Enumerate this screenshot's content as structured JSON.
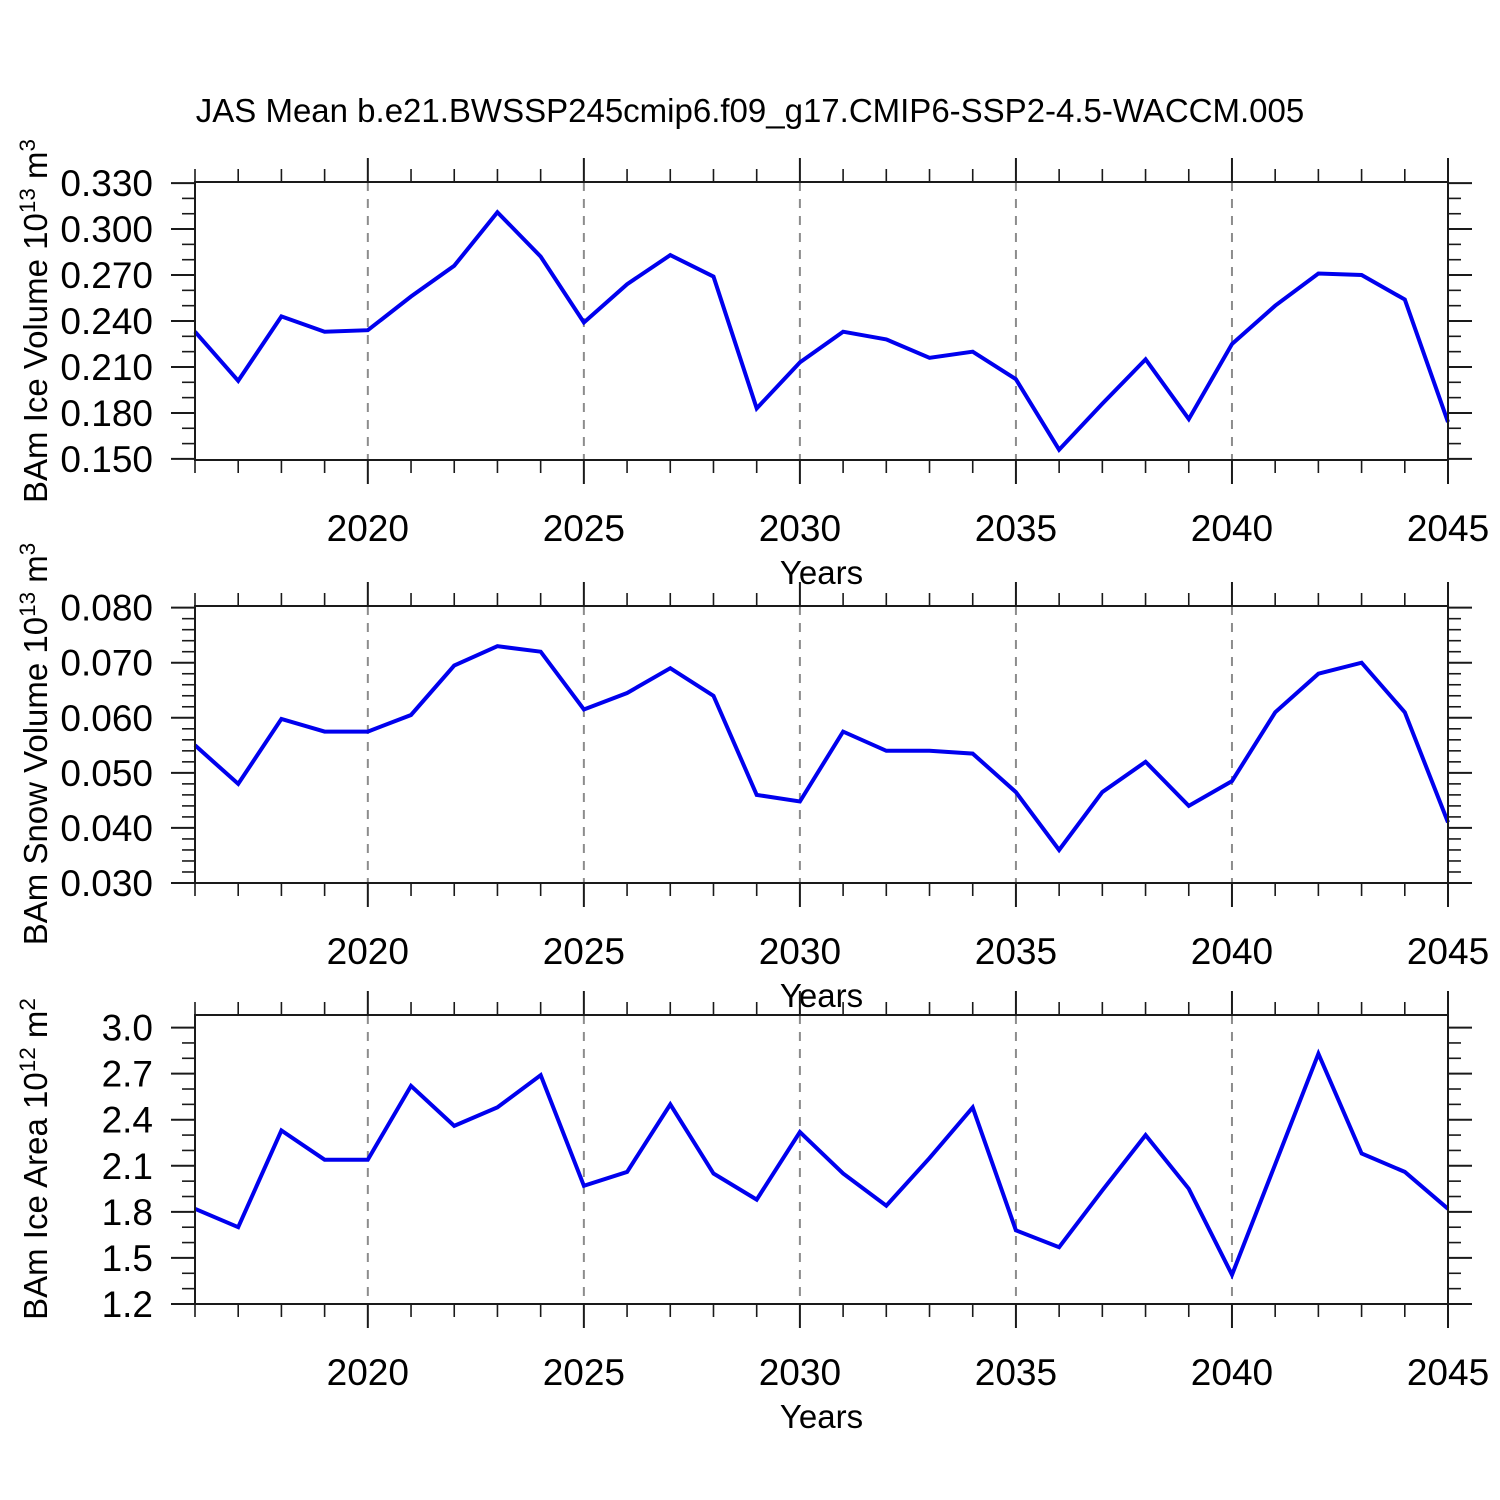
{
  "figure": {
    "title": "JAS Mean b.e21.BWSSP245cmip6.f09_g17.CMIP6-SSP2-4.5-WACCM.005",
    "background": "#ffffff",
    "line_color": "#0000ee",
    "frame_color": "#1a1a1a",
    "grid_color": "#8c8c8c",
    "text_color": "#000000"
  },
  "chart_data": [
    {
      "type": "line",
      "name": "ice-volume",
      "title": "",
      "xlabel": "Years",
      "ylabel": "BAm Ice Volume 10^13 m^3",
      "ylabel_parts": [
        "BAm Ice Volume 10",
        "13",
        " m",
        "3"
      ],
      "x": [
        2016,
        2017,
        2018,
        2019,
        2020,
        2021,
        2022,
        2023,
        2024,
        2025,
        2026,
        2027,
        2028,
        2029,
        2030,
        2031,
        2032,
        2033,
        2034,
        2035,
        2036,
        2037,
        2038,
        2039,
        2040,
        2041,
        2042,
        2043,
        2044,
        2045
      ],
      "series": [
        {
          "name": "BAm Ice Volume",
          "values": [
            0.233,
            0.201,
            0.243,
            0.233,
            0.234,
            0.256,
            0.276,
            0.311,
            0.282,
            0.239,
            0.264,
            0.283,
            0.269,
            0.183,
            0.213,
            0.233,
            0.228,
            0.216,
            0.22,
            0.202,
            0.156,
            0.186,
            0.215,
            0.176,
            0.225,
            0.25,
            0.271,
            0.27,
            0.254,
            0.174
          ]
        }
      ],
      "xlim": [
        2016,
        2045
      ],
      "ylim": [
        0.1493,
        0.3307
      ],
      "xticks": [
        2020,
        2025,
        2030,
        2035,
        2040,
        2045
      ],
      "xminor_step": 1,
      "yticks": [
        0.15,
        0.18,
        0.21,
        0.24,
        0.27,
        0.3,
        0.33
      ],
      "ytick_labels": [
        "0.150",
        "0.180",
        "0.210",
        "0.240",
        "0.270",
        "0.300",
        "0.330"
      ],
      "yminor_step": 0.01,
      "x_gridlines": [
        2020,
        2025,
        2030,
        2035,
        2040
      ],
      "grid_style": "dashed-vertical",
      "legend": "none"
    },
    {
      "type": "line",
      "name": "snow-volume",
      "title": "",
      "xlabel": "Years",
      "ylabel": "BAm Snow Volume 10^13 m^3",
      "ylabel_parts": [
        "BAm Snow Volume 10",
        "13",
        " m",
        "3"
      ],
      "x": [
        2016,
        2017,
        2018,
        2019,
        2020,
        2021,
        2022,
        2023,
        2024,
        2025,
        2026,
        2027,
        2028,
        2029,
        2030,
        2031,
        2032,
        2033,
        2034,
        2035,
        2036,
        2037,
        2038,
        2039,
        2040,
        2041,
        2042,
        2043,
        2044,
        2045
      ],
      "series": [
        {
          "name": "BAm Snow Volume",
          "values": [
            0.055,
            0.048,
            0.0598,
            0.0575,
            0.0575,
            0.0605,
            0.0695,
            0.073,
            0.072,
            0.0615,
            0.0645,
            0.069,
            0.064,
            0.046,
            0.0448,
            0.0575,
            0.054,
            0.054,
            0.0535,
            0.0465,
            0.036,
            0.0465,
            0.052,
            0.044,
            0.0485,
            0.061,
            0.068,
            0.07,
            0.061,
            0.041
          ]
        }
      ],
      "xlim": [
        2016,
        2045
      ],
      "ylim": [
        0.03,
        0.0803
      ],
      "xticks": [
        2020,
        2025,
        2030,
        2035,
        2040,
        2045
      ],
      "xminor_step": 1,
      "yticks": [
        0.03,
        0.04,
        0.05,
        0.06,
        0.07,
        0.08
      ],
      "ytick_labels": [
        "0.030",
        "0.040",
        "0.050",
        "0.060",
        "0.070",
        "0.080"
      ],
      "yminor_step": 0.002,
      "x_gridlines": [
        2020,
        2025,
        2030,
        2035,
        2040
      ],
      "grid_style": "dashed-vertical",
      "legend": "none"
    },
    {
      "type": "line",
      "name": "ice-area",
      "title": "",
      "xlabel": "Years",
      "ylabel": "BAm Ice Area 10^12 m^2",
      "ylabel_parts": [
        "BAm Ice Area 10",
        "12",
        " m",
        "2"
      ],
      "x": [
        2016,
        2017,
        2018,
        2019,
        2020,
        2021,
        2022,
        2023,
        2024,
        2025,
        2026,
        2027,
        2028,
        2029,
        2030,
        2031,
        2032,
        2033,
        2034,
        2035,
        2036,
        2037,
        2038,
        2039,
        2040,
        2041,
        2042,
        2043,
        2044,
        2045
      ],
      "series": [
        {
          "name": "BAm Ice Area",
          "values": [
            1.82,
            1.7,
            2.33,
            2.14,
            2.14,
            2.62,
            2.36,
            2.48,
            2.69,
            1.97,
            2.06,
            2.5,
            2.05,
            1.88,
            2.32,
            2.05,
            1.84,
            2.15,
            2.48,
            1.68,
            1.57,
            1.94,
            2.3,
            1.95,
            1.39,
            2.11,
            2.83,
            2.18,
            2.06,
            1.82
          ]
        }
      ],
      "xlim": [
        2016,
        2045
      ],
      "ylim": [
        1.2,
        3.082
      ],
      "xticks": [
        2020,
        2025,
        2030,
        2035,
        2040,
        2045
      ],
      "xminor_step": 1,
      "yticks": [
        1.2,
        1.5,
        1.8,
        2.1,
        2.4,
        2.7,
        3.0
      ],
      "ytick_labels": [
        "1.2",
        "1.5",
        "1.8",
        "2.1",
        "2.4",
        "2.7",
        "3.0"
      ],
      "yminor_step": 0.1,
      "x_gridlines": [
        2020,
        2025,
        2030,
        2035,
        2040
      ],
      "grid_style": "dashed-vertical",
      "legend": "none"
    }
  ]
}
